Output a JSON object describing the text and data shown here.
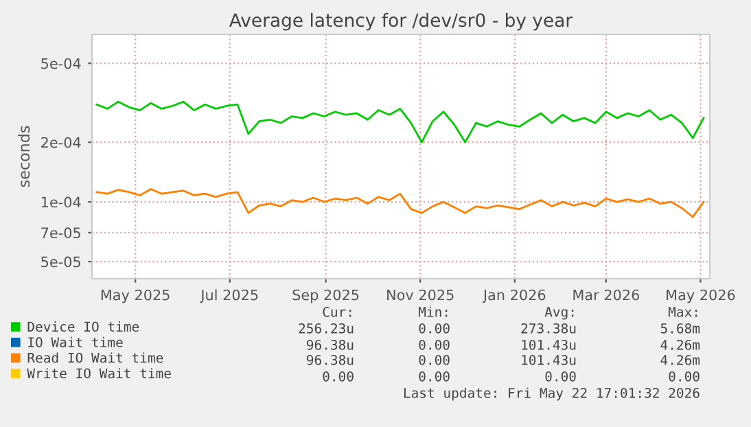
{
  "chart_data": {
    "type": "line",
    "title": "Average latency for /dev/sr0 - by year",
    "ylabel": "seconds",
    "log": "y",
    "grid": true,
    "legend": "bottom",
    "marker": "none",
    "line_style": "solid",
    "xlim": [
      "2025-04-18",
      "2026-05-22"
    ],
    "xticks": [
      {
        "value": "2025-05-16",
        "label": "May 2025"
      },
      {
        "value": "2025-07-16",
        "label": "Jul 2025"
      },
      {
        "value": "2025-09-16",
        "label": "Sep 2025"
      },
      {
        "value": "2025-11-16",
        "label": "Nov 2025"
      },
      {
        "value": "2026-01-16",
        "label": "Jan 2026"
      },
      {
        "value": "2026-03-16",
        "label": "Mar 2026"
      },
      {
        "value": "2026-05-16",
        "label": "May 2026"
      }
    ],
    "ylim": [
      4.1e-05,
      0.0007
    ],
    "yticks": [
      {
        "value": 5e-05,
        "label": "5e-05"
      },
      {
        "value": 7e-05,
        "label": "7e-05"
      },
      {
        "value": 0.0001,
        "label": "1e-04"
      },
      {
        "value": 0.0002,
        "label": "2e-04"
      },
      {
        "value": 0.0005,
        "label": "5e-04"
      }
    ],
    "x": [
      "2025-04-21",
      "2025-04-28",
      "2025-05-05",
      "2025-05-12",
      "2025-05-19",
      "2025-05-26",
      "2025-06-02",
      "2025-06-09",
      "2025-06-16",
      "2025-06-23",
      "2025-06-30",
      "2025-07-07",
      "2025-07-14",
      "2025-07-21",
      "2025-07-28",
      "2025-08-04",
      "2025-08-11",
      "2025-08-18",
      "2025-08-25",
      "2025-09-01",
      "2025-09-08",
      "2025-09-15",
      "2025-09-22",
      "2025-09-29",
      "2025-10-06",
      "2025-10-13",
      "2025-10-20",
      "2025-10-27",
      "2025-11-03",
      "2025-11-10",
      "2025-11-17",
      "2025-11-24",
      "2025-12-01",
      "2025-12-08",
      "2025-12-15",
      "2025-12-22",
      "2025-12-29",
      "2026-01-05",
      "2026-01-12",
      "2026-01-19",
      "2026-01-26",
      "2026-02-02",
      "2026-02-09",
      "2026-02-16",
      "2026-02-23",
      "2026-03-02",
      "2026-03-09",
      "2026-03-16",
      "2026-03-23",
      "2026-03-30",
      "2026-04-06",
      "2026-04-13",
      "2026-04-20",
      "2026-04-27",
      "2026-05-04",
      "2026-05-11",
      "2026-05-18"
    ],
    "series": [
      {
        "name": "Device IO time",
        "color": "#00cc00",
        "values": [
          0.00031,
          0.000295,
          0.00032,
          0.0003,
          0.00029,
          0.000315,
          0.000295,
          0.000305,
          0.00032,
          0.00029,
          0.00031,
          0.000295,
          0.000305,
          0.00031,
          0.00022,
          0.000255,
          0.00026,
          0.00025,
          0.00027,
          0.000265,
          0.00028,
          0.00027,
          0.000285,
          0.000275,
          0.00028,
          0.00026,
          0.00029,
          0.000275,
          0.000295,
          0.00025,
          0.0002,
          0.000255,
          0.000285,
          0.000245,
          0.0002,
          0.00025,
          0.00024,
          0.000255,
          0.000245,
          0.00024,
          0.00026,
          0.00028,
          0.00025,
          0.000275,
          0.000255,
          0.000265,
          0.00025,
          0.000285,
          0.000265,
          0.00028,
          0.00027,
          0.00029,
          0.00026,
          0.000275,
          0.00025,
          0.00021,
          0.000265
        ]
      },
      {
        "name": "IO Wait time",
        "color": "#0066b3",
        "values": [
          null,
          null,
          null,
          null,
          null,
          null,
          null,
          null,
          null,
          null,
          null,
          null,
          null,
          null,
          null,
          null,
          null,
          null,
          null,
          null,
          null,
          null,
          null,
          null,
          null,
          null,
          null,
          null,
          null,
          null,
          null,
          null,
          null,
          null,
          null,
          null,
          null,
          null,
          null,
          null,
          null,
          null,
          null,
          null,
          null,
          null,
          null,
          null,
          null,
          null,
          null,
          null,
          null,
          null,
          null,
          null,
          null
        ]
      },
      {
        "name": "Read IO Wait time",
        "color": "#ff8000",
        "values": [
          0.000112,
          0.00011,
          0.000115,
          0.000112,
          0.000108,
          0.000116,
          0.00011,
          0.000112,
          0.000114,
          0.000108,
          0.00011,
          0.000106,
          0.00011,
          0.000112,
          8.8e-05,
          9.6e-05,
          9.8e-05,
          9.5e-05,
          0.000102,
          0.0001,
          0.000105,
          0.0001,
          0.000104,
          0.000102,
          0.000105,
          9.8e-05,
          0.000106,
          0.000102,
          0.00011,
          9.2e-05,
          8.8e-05,
          9.5e-05,
          0.0001,
          9.4e-05,
          8.8e-05,
          9.5e-05,
          9.3e-05,
          9.6e-05,
          9.4e-05,
          9.2e-05,
          9.7e-05,
          0.000102,
          9.5e-05,
          0.0001,
          9.6e-05,
          9.9e-05,
          9.5e-05,
          0.000104,
          0.0001,
          0.000103,
          0.0001,
          0.000104,
          9.8e-05,
          0.0001,
          9.3e-05,
          8.4e-05,
          0.0001
        ]
      },
      {
        "name": "Write IO Wait time",
        "color": "#ffcc00",
        "values": [
          null,
          null,
          null,
          null,
          null,
          null,
          null,
          null,
          null,
          null,
          null,
          null,
          null,
          null,
          null,
          null,
          null,
          null,
          null,
          null,
          null,
          null,
          null,
          null,
          null,
          null,
          null,
          null,
          null,
          null,
          null,
          null,
          null,
          null,
          null,
          null,
          null,
          null,
          null,
          null,
          null,
          null,
          null,
          null,
          null,
          null,
          null,
          null,
          null,
          null,
          null,
          null,
          null,
          null,
          null,
          null,
          null
        ]
      }
    ],
    "annotations": [
      "Cur:",
      "Min:",
      "Avg:",
      "Max:",
      "256.23u",
      "0.00",
      "273.38u",
      "5.68m",
      "96.38u",
      "0.00",
      "101.43u",
      "4.26m",
      "96.38u",
      "0.00",
      "101.43u",
      "4.26m",
      "0.00",
      "0.00",
      "0.00",
      "0.00",
      "Last update: Fri May 22 17:01:32 2026"
    ]
  }
}
